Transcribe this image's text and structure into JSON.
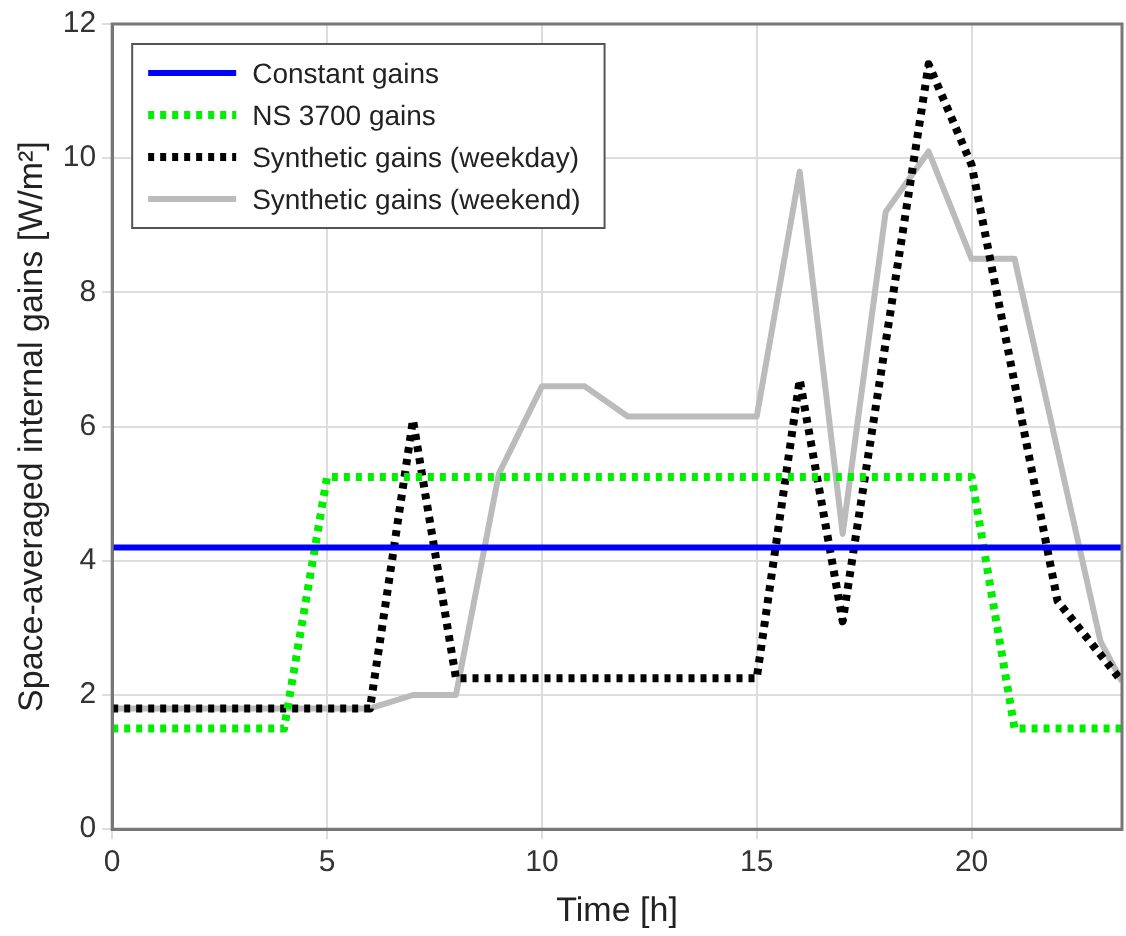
{
  "chart_data": {
    "type": "line",
    "xlabel": "Time [h]",
    "ylabel": "Space-averaged internal gains [W/m²]",
    "xlim": [
      0,
      23.5
    ],
    "xticks": [
      0,
      5,
      10,
      15,
      20
    ],
    "ylim": [
      0,
      12
    ],
    "yticks": [
      0,
      2,
      4,
      6,
      8,
      10,
      12
    ],
    "grid": true,
    "legend": "top left",
    "marker": "none",
    "series": [
      {
        "name": "Constant gains",
        "color": "#0000ff",
        "line_style": "solid",
        "x": [
          0,
          23.5
        ],
        "values": [
          4.2,
          4.2
        ]
      },
      {
        "name": "NS 3700 gains",
        "color": "#00ee00",
        "line_style": "dotted",
        "x": [
          0,
          4,
          5,
          20,
          21,
          23.5
        ],
        "values": [
          1.5,
          1.5,
          5.25,
          5.25,
          1.5,
          1.5
        ]
      },
      {
        "name": "Synthetic gains (weekday)",
        "color": "#000000",
        "line_style": "dotted",
        "x": [
          0,
          6,
          7,
          8,
          15,
          16,
          17,
          19,
          20,
          22,
          23.5
        ],
        "values": [
          1.8,
          1.8,
          6.1,
          2.25,
          2.25,
          6.7,
          3.1,
          11.4,
          9.9,
          3.4,
          2.2
        ]
      },
      {
        "name": "Synthetic gains (weekend)",
        "color": "#bbbbbb",
        "line_style": "solid",
        "x": [
          0,
          6,
          7,
          8,
          9,
          10,
          11,
          12,
          15,
          16,
          17,
          18,
          19,
          20,
          21,
          23,
          23.5
        ],
        "values": [
          1.8,
          1.8,
          2.0,
          2.0,
          5.3,
          6.6,
          6.6,
          6.15,
          6.15,
          9.8,
          4.4,
          9.2,
          10.1,
          8.5,
          8.5,
          2.8,
          2.2
        ]
      }
    ]
  }
}
